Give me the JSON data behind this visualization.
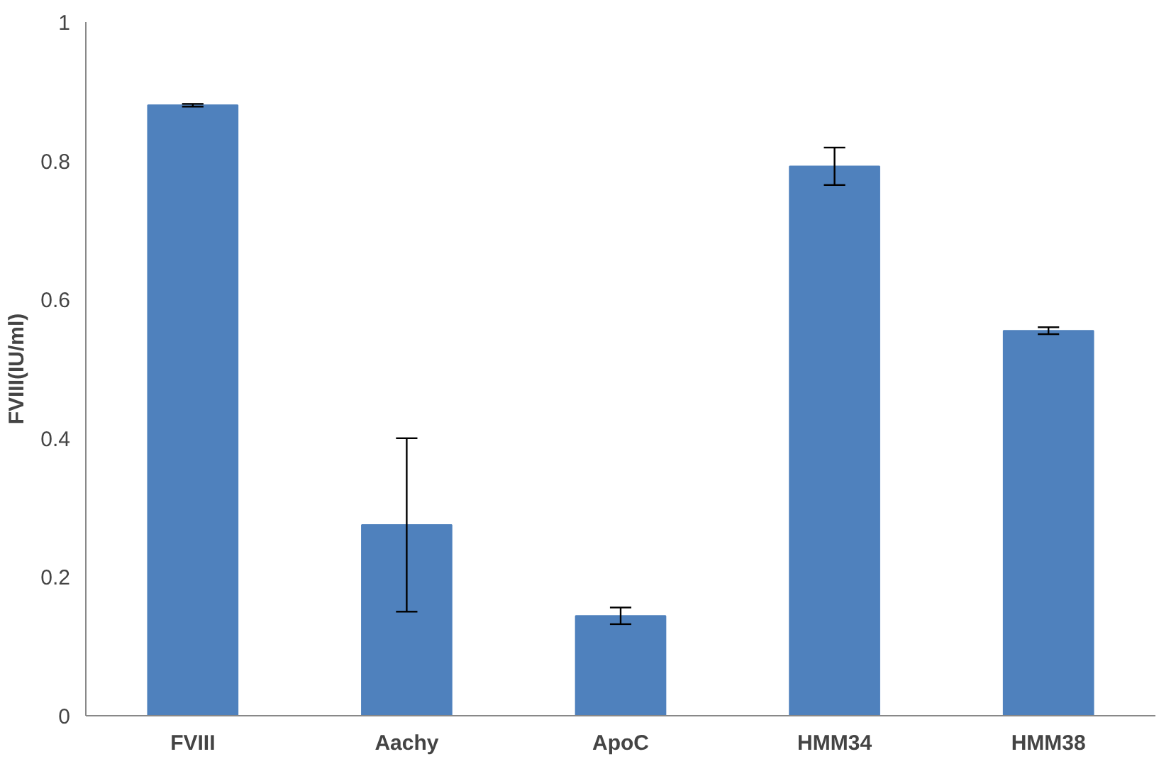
{
  "chart_data": {
    "type": "bar",
    "ylabel": "FVIII(IU/ml)",
    "categories": [
      "FVIII",
      "Aachy",
      "ApoC",
      "HMM34",
      "HMM38"
    ],
    "values": [
      0.88,
      0.275,
      0.144,
      0.792,
      0.555
    ],
    "errors": [
      0.002,
      0.125,
      0.012,
      0.027,
      0.005
    ],
    "color": "#4f81bd",
    "ylim": [
      0,
      1
    ],
    "yticks": [
      0,
      0.2,
      0.4,
      0.6,
      0.8,
      1
    ],
    "grid": false
  }
}
